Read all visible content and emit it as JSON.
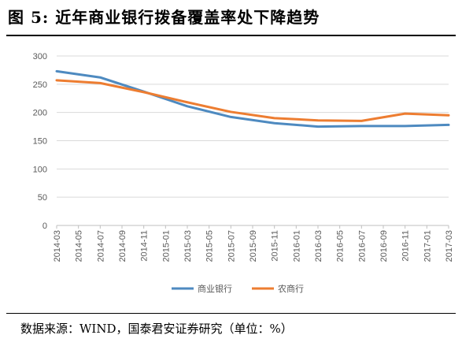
{
  "title": "图 5:  近年商业银行拨备覆盖率处下降趋势",
  "source": "数据来源：WIND，国泰君安证券研究（单位：%）",
  "chart_data": {
    "type": "line",
    "x": [
      "2014-03",
      "2014-05",
      "2014-07",
      "2014-09",
      "2014-11",
      "2015-01",
      "2015-03",
      "2015-05",
      "2015-07",
      "2015-09",
      "2015-11",
      "2016-01",
      "2016-03",
      "2016-05",
      "2016-07",
      "2016-09",
      "2016-11",
      "2017-01",
      "2017-03"
    ],
    "x_tick_labels": [
      "2014-03",
      "2014-05",
      "2014-07",
      "2014-09",
      "2014-11",
      "2015-01",
      "2015-03",
      "2015-05",
      "2015-07",
      "2015-09",
      "2015-11",
      "2016-01",
      "2016-03",
      "2016-05",
      "2016-07",
      "2016-09",
      "2016-11",
      "2017-01",
      "2017-03"
    ],
    "ylim": [
      0,
      300
    ],
    "yticks": [
      "0",
      "50",
      "100",
      "150",
      "200",
      "250",
      "300"
    ],
    "grid": true,
    "legend_position": "bottom",
    "series": [
      {
        "name": "商业银行",
        "color": "#4e8ac0",
        "values": [
          273,
          null,
          262,
          null,
          237,
          null,
          211,
          null,
          192,
          null,
          181,
          null,
          175,
          null,
          176,
          null,
          176,
          null,
          178
        ]
      },
      {
        "name": "农商行",
        "color": "#ed7d31",
        "values": [
          257,
          null,
          252,
          null,
          236,
          null,
          218,
          null,
          201,
          null,
          190,
          null,
          186,
          null,
          185,
          null,
          198,
          null,
          195
        ]
      }
    ]
  }
}
